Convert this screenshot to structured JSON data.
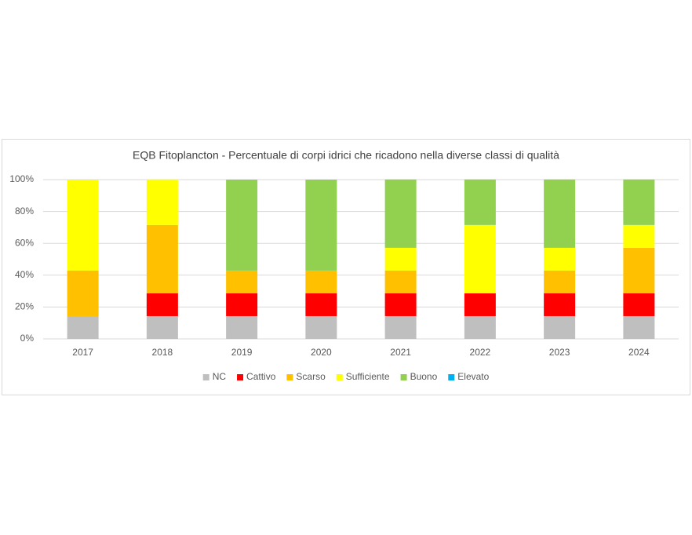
{
  "chart_data": {
    "type": "stacked_bar",
    "title": "EQB Fitoplancton - Percentuale di corpi idrici che ricadono nella diverse classi di qualità",
    "categories": [
      "2017",
      "2018",
      "2019",
      "2020",
      "2021",
      "2022",
      "2023",
      "2024"
    ],
    "series": [
      {
        "name": "NC",
        "color": "#bfbfbf",
        "values": [
          14.3,
          14.3,
          14.3,
          14.3,
          14.3,
          14.3,
          14.3,
          14.3
        ]
      },
      {
        "name": "Cattivo",
        "color": "#ff0000",
        "values": [
          0,
          14.3,
          14.3,
          14.3,
          14.3,
          14.3,
          14.3,
          14.3
        ]
      },
      {
        "name": "Scarso",
        "color": "#ffc000",
        "values": [
          28.6,
          42.9,
          14.3,
          14.3,
          14.3,
          0,
          14.3,
          28.6
        ]
      },
      {
        "name": "Sufficiente",
        "color": "#ffff00",
        "values": [
          57.1,
          28.6,
          0,
          0,
          14.3,
          42.9,
          14.3,
          14.3
        ]
      },
      {
        "name": "Buono",
        "color": "#92d050",
        "values": [
          0,
          0,
          57.1,
          57.1,
          42.9,
          28.6,
          42.9,
          28.6
        ]
      },
      {
        "name": "Elevato",
        "color": "#00b0f0",
        "values": [
          0,
          0,
          0,
          0,
          0,
          0,
          0,
          0
        ]
      }
    ],
    "ylim": [
      0,
      100
    ],
    "yticks": [
      {
        "value": 0,
        "label": "0%"
      },
      {
        "value": 20,
        "label": "20%"
      },
      {
        "value": 40,
        "label": "40%"
      },
      {
        "value": 60,
        "label": "60%"
      },
      {
        "value": 80,
        "label": "80%"
      },
      {
        "value": 100,
        "label": "100%"
      }
    ],
    "grid": true,
    "legend": "bottom"
  }
}
